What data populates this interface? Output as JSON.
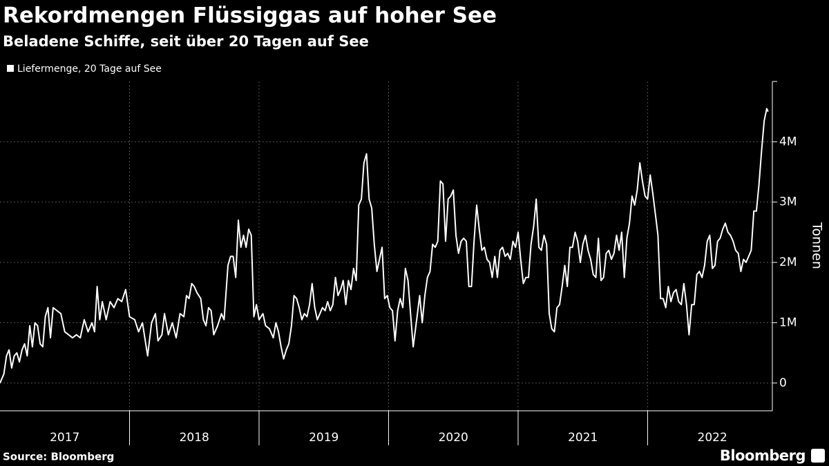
{
  "chart_data": {
    "type": "line",
    "title": "Rekordmengen Flüssiggas auf hoher See",
    "subtitle": "Beladene Schiffe, seit über 20 Tagen auf See",
    "y_label": "Tonnen",
    "source": "Source: Bloomberg",
    "brand": "Bloomberg",
    "grid": true,
    "legend": "top-left",
    "xlim": [
      2017,
      2022.963
    ],
    "xticks": [
      2017,
      2018,
      2019,
      2020,
      2021,
      2022
    ],
    "ylim": [
      -460000,
      5000000
    ],
    "yticks": [
      {
        "value": 0,
        "label": "0"
      },
      {
        "value": 1000000,
        "label": "1M"
      },
      {
        "value": 2000000,
        "label": "2M"
      },
      {
        "value": 3000000,
        "label": "3M"
      },
      {
        "value": 4000000,
        "label": "4M"
      }
    ],
    "x": [
      2017.0,
      2017.03,
      2017.05,
      2017.07,
      2017.09,
      2017.11,
      2017.13,
      2017.15,
      2017.17,
      2017.19,
      2017.21,
      2017.23,
      2017.25,
      2017.27,
      2017.29,
      2017.31,
      2017.33,
      2017.35,
      2017.37,
      2017.39,
      2017.41,
      2017.44,
      2017.47,
      2017.5,
      2017.53,
      2017.56,
      2017.59,
      2017.62,
      2017.65,
      2017.68,
      2017.71,
      2017.73,
      2017.75,
      2017.77,
      2017.79,
      2017.82,
      2017.85,
      2017.88,
      2017.91,
      2017.94,
      2017.97,
      2018.0,
      2018.04,
      2018.07,
      2018.1,
      2018.14,
      2018.17,
      2018.2,
      2018.22,
      2018.25,
      2018.27,
      2018.3,
      2018.33,
      2018.36,
      2018.39,
      2018.42,
      2018.44,
      2018.46,
      2018.48,
      2018.5,
      2018.52,
      2018.55,
      2018.57,
      2018.59,
      2018.61,
      2018.63,
      2018.65,
      2018.68,
      2018.71,
      2018.73,
      2018.76,
      2018.78,
      2018.8,
      2018.82,
      2018.84,
      2018.86,
      2018.88,
      2018.9,
      2018.92,
      2018.94,
      2018.96,
      2018.98,
      2019.0,
      2019.03,
      2019.05,
      2019.08,
      2019.11,
      2019.13,
      2019.15,
      2019.17,
      2019.19,
      2019.21,
      2019.23,
      2019.25,
      2019.27,
      2019.29,
      2019.31,
      2019.33,
      2019.35,
      2019.37,
      2019.39,
      2019.41,
      2019.43,
      2019.45,
      2019.47,
      2019.49,
      2019.51,
      2019.53,
      2019.55,
      2019.57,
      2019.59,
      2019.61,
      2019.63,
      2019.65,
      2019.67,
      2019.69,
      2019.71,
      2019.73,
      2019.75,
      2019.77,
      2019.79,
      2019.81,
      2019.83,
      2019.85,
      2019.87,
      2019.89,
      2019.91,
      2019.93,
      2019.95,
      2019.97,
      2019.99,
      2020.01,
      2020.03,
      2020.05,
      2020.07,
      2020.09,
      2020.11,
      2020.13,
      2020.15,
      2020.17,
      2020.19,
      2020.22,
      2020.24,
      2020.26,
      2020.28,
      2020.3,
      2020.32,
      2020.34,
      2020.36,
      2020.38,
      2020.4,
      2020.42,
      2020.44,
      2020.46,
      2020.48,
      2020.5,
      2020.52,
      2020.54,
      2020.56,
      2020.58,
      2020.6,
      2020.62,
      2020.64,
      2020.66,
      2020.68,
      2020.7,
      2020.72,
      2020.74,
      2020.76,
      2020.78,
      2020.8,
      2020.82,
      2020.84,
      2020.86,
      2020.88,
      2020.9,
      2020.92,
      2020.94,
      2020.96,
      2020.98,
      2021.0,
      2021.02,
      2021.04,
      2021.06,
      2021.08,
      2021.1,
      2021.12,
      2021.14,
      2021.16,
      2021.18,
      2021.2,
      2021.22,
      2021.24,
      2021.26,
      2021.28,
      2021.3,
      2021.32,
      2021.34,
      2021.36,
      2021.38,
      2021.4,
      2021.42,
      2021.44,
      2021.46,
      2021.48,
      2021.5,
      2021.52,
      2021.54,
      2021.56,
      2021.58,
      2021.6,
      2021.62,
      2021.64,
      2021.66,
      2021.68,
      2021.7,
      2021.72,
      2021.74,
      2021.76,
      2021.78,
      2021.8,
      2021.82,
      2021.84,
      2021.86,
      2021.88,
      2021.9,
      2021.92,
      2021.94,
      2021.96,
      2021.98,
      2022.0,
      2022.02,
      2022.04,
      2022.06,
      2022.08,
      2022.1,
      2022.12,
      2022.14,
      2022.16,
      2022.18,
      2022.2,
      2022.22,
      2022.24,
      2022.26,
      2022.28,
      2022.3,
      2022.32,
      2022.34,
      2022.36,
      2022.38,
      2022.4,
      2022.42,
      2022.44,
      2022.46,
      2022.48,
      2022.5,
      2022.52,
      2022.54,
      2022.56,
      2022.58,
      2022.6,
      2022.62,
      2022.64,
      2022.66,
      2022.68,
      2022.7,
      2022.72,
      2022.74,
      2022.76,
      2022.78,
      2022.8,
      2022.82,
      2022.84,
      2022.86,
      2022.88,
      2022.9,
      2022.92,
      2022.93
    ],
    "series": [
      {
        "name": "Liefermenge, 20 Tage auf See",
        "color": "#ffffff",
        "values": [
          0,
          150000,
          450000,
          550000,
          250000,
          450000,
          500000,
          350000,
          550000,
          650000,
          450000,
          950000,
          600000,
          1000000,
          950000,
          650000,
          600000,
          1100000,
          1250000,
          750000,
          1250000,
          1200000,
          1150000,
          850000,
          800000,
          750000,
          800000,
          750000,
          1050000,
          850000,
          1000000,
          850000,
          1600000,
          1050000,
          1350000,
          1050000,
          1350000,
          1250000,
          1400000,
          1350000,
          1550000,
          1100000,
          1050000,
          850000,
          1000000,
          450000,
          1000000,
          1150000,
          700000,
          800000,
          1150000,
          800000,
          1000000,
          750000,
          1150000,
          1100000,
          1450000,
          1400000,
          1650000,
          1600000,
          1500000,
          1400000,
          1050000,
          950000,
          1250000,
          1200000,
          800000,
          950000,
          1150000,
          1050000,
          1950000,
          2100000,
          2100000,
          1750000,
          2700000,
          2250000,
          2450000,
          2250000,
          2550000,
          2450000,
          1100000,
          1300000,
          1050000,
          1150000,
          950000,
          900000,
          750000,
          1000000,
          850000,
          600000,
          400000,
          550000,
          650000,
          950000,
          1450000,
          1400000,
          1250000,
          1050000,
          1150000,
          1100000,
          1300000,
          1650000,
          1250000,
          1050000,
          1150000,
          1250000,
          1200000,
          1350000,
          1200000,
          1300000,
          1750000,
          1450000,
          1550000,
          1700000,
          1300000,
          1700000,
          1550000,
          1900000,
          1700000,
          2950000,
          3050000,
          3650000,
          3800000,
          3050000,
          2900000,
          2300000,
          1850000,
          2050000,
          2250000,
          1400000,
          1450000,
          1250000,
          1200000,
          700000,
          1200000,
          1400000,
          1250000,
          1900000,
          1700000,
          1150000,
          600000,
          1100000,
          1450000,
          1000000,
          1450000,
          1750000,
          1850000,
          2300000,
          2250000,
          2350000,
          3350000,
          3300000,
          2350000,
          3050000,
          3100000,
          3200000,
          2450000,
          2150000,
          2350000,
          2400000,
          2350000,
          1600000,
          1600000,
          2350000,
          2950000,
          2550000,
          2200000,
          2250000,
          2050000,
          2000000,
          1750000,
          2100000,
          1750000,
          2200000,
          2250000,
          2100000,
          2150000,
          2050000,
          2350000,
          2250000,
          2500000,
          2050000,
          1650000,
          1750000,
          1750000,
          2300000,
          2600000,
          3050000,
          2250000,
          2200000,
          2450000,
          2300000,
          1150000,
          900000,
          850000,
          1250000,
          1300000,
          1600000,
          1950000,
          1600000,
          2250000,
          2250000,
          2500000,
          2350000,
          2000000,
          2300000,
          2450000,
          2200000,
          2050000,
          1800000,
          1750000,
          2400000,
          1700000,
          1750000,
          2150000,
          2200000,
          2050000,
          2150000,
          2450000,
          2200000,
          2500000,
          1750000,
          2400000,
          2650000,
          3100000,
          2950000,
          3200000,
          3650000,
          3350000,
          3100000,
          3050000,
          3450000,
          3150000,
          2800000,
          2450000,
          1400000,
          1400000,
          1250000,
          1600000,
          1350000,
          1500000,
          1550000,
          1350000,
          1300000,
          1650000,
          1300000,
          800000,
          1300000,
          1300000,
          1800000,
          1850000,
          1750000,
          1950000,
          2350000,
          2450000,
          1900000,
          1950000,
          2350000,
          2400000,
          2550000,
          2650000,
          2500000,
          2450000,
          2350000,
          2200000,
          2150000,
          1850000,
          2050000,
          2000000,
          2100000,
          2200000,
          2850000,
          2850000,
          3300000,
          3850000,
          4350000,
          4550000,
          4500000
        ]
      }
    ]
  }
}
